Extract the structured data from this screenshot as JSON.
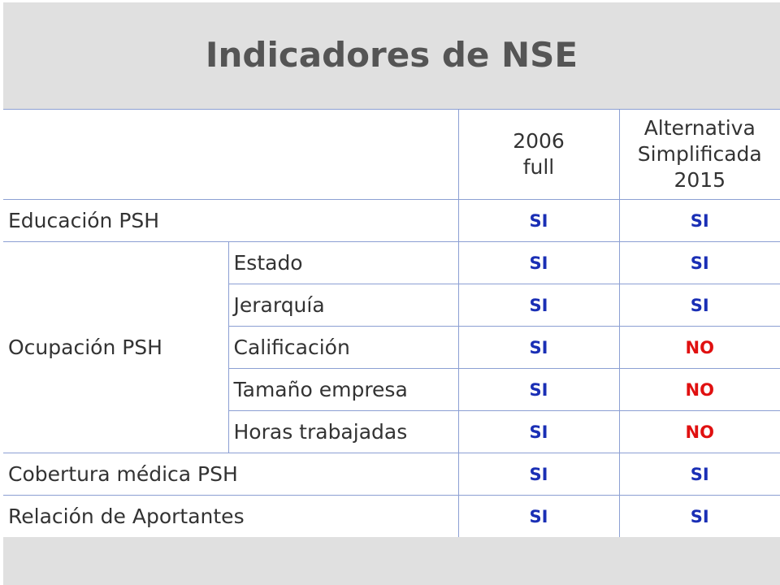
{
  "title": "Indicadores de NSE",
  "columns": {
    "col1": [
      "2006",
      "full"
    ],
    "col2": [
      "Alternativa",
      "Simplificada",
      "2015"
    ]
  },
  "rows": {
    "educacion": {
      "label": "Educación  PSH",
      "v1": "SI",
      "v2": "SI"
    },
    "ocupacion_label": "Ocupación PSH",
    "ocupacion": [
      {
        "label": "Estado",
        "v1": "SI",
        "v2": "SI"
      },
      {
        "label": "Jerarquía",
        "v1": "SI",
        "v2": "SI"
      },
      {
        "label": "Calificación",
        "v1": "SI",
        "v2": "NO"
      },
      {
        "label": "Tamaño empresa",
        "v1": "SI",
        "v2": "NO"
      },
      {
        "label": "Horas trabajadas",
        "v1": "SI",
        "v2": "NO"
      }
    ],
    "cobertura": {
      "label": "Cobertura médica PSH",
      "v1": "SI",
      "v2": "SI"
    },
    "relacion": {
      "label": "Relación de Aportantes",
      "v1": "SI",
      "v2": "SI"
    }
  },
  "colors": {
    "yes": "#1a2fb5",
    "no": "#e01010",
    "border": "#8c9fd3",
    "band": "#e0e0e0"
  }
}
